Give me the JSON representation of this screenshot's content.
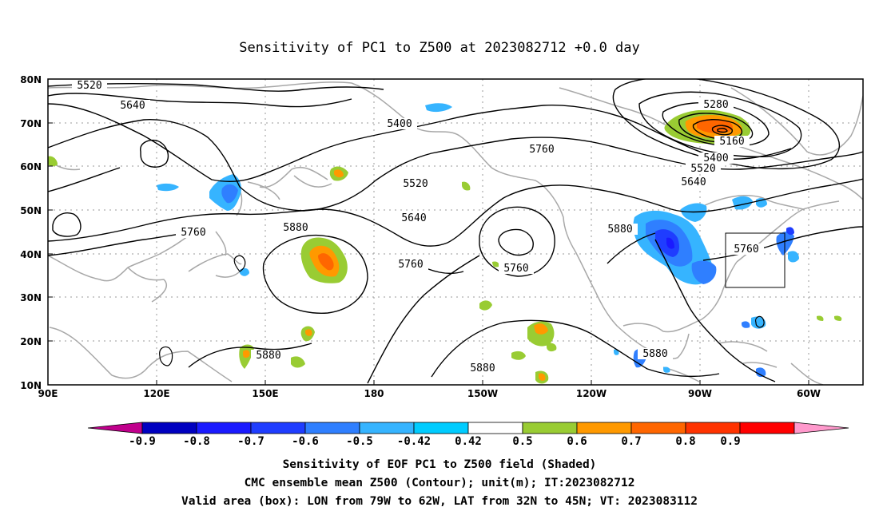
{
  "title": "Sensitivity of PC1 to Z500 at 2023082712 +0.0 day",
  "lat_labels": [
    "80N",
    "70N",
    "60N",
    "50N",
    "40N",
    "30N",
    "20N",
    "10N"
  ],
  "lon_labels": [
    "90E",
    "120E",
    "150E",
    "180",
    "150W",
    "120W",
    "90W",
    "60W"
  ],
  "contour_labels": [
    "5520",
    "5640",
    "5400",
    "5760",
    "5880",
    "5520",
    "5640",
    "5760",
    "5760",
    "5880",
    "5280",
    "5160",
    "5400",
    "5520",
    "5640",
    "5760",
    "5880",
    "5880",
    "5880"
  ],
  "colorbar": {
    "labels": [
      "-0.9",
      "-0.8",
      "-0.7",
      "-0.6",
      "-0.5",
      "-0.42",
      "0.42",
      "0.5",
      "0.6",
      "0.7",
      "0.8",
      "0.9"
    ],
    "colors": [
      "#c0008c",
      "#0000c0",
      "#1a1aff",
      "#1f3dff",
      "#2f7fff",
      "#36b4ff",
      "#00ccff",
      "#ffffff",
      "#99cc33",
      "#ff9900",
      "#ff6600",
      "#ff3300",
      "#ff0000",
      "#ff99cc"
    ]
  },
  "captions": {
    "line1": "Sensitivity of EOF PC1 to Z500 field (Shaded)",
    "line2": "CMC ensemble mean Z500 (Contour); unit(m); IT:2023082712",
    "line3": "Valid area (box): LON from 79W to 62W, LAT from 32N to 45N; VT: 2023083112"
  }
}
